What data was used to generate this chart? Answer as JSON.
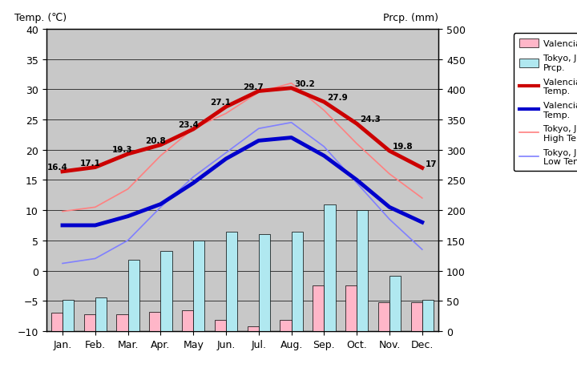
{
  "months": [
    "Jan.",
    "Feb.",
    "Mar.",
    "Apr.",
    "May",
    "Jun.",
    "Jul.",
    "Aug.",
    "Sep.",
    "Oct.",
    "Nov.",
    "Dec."
  ],
  "valencia_high": [
    16.4,
    17.1,
    19.3,
    20.8,
    23.4,
    27.1,
    29.7,
    30.2,
    27.9,
    24.3,
    19.8,
    17.0
  ],
  "valencia_low": [
    7.5,
    7.5,
    9.0,
    11.0,
    14.5,
    18.5,
    21.5,
    22.0,
    19.0,
    15.0,
    10.5,
    8.0
  ],
  "tokyo_high": [
    9.8,
    10.5,
    13.5,
    19.0,
    23.5,
    26.0,
    29.5,
    31.0,
    26.5,
    21.0,
    16.0,
    12.0
  ],
  "tokyo_low": [
    1.2,
    2.0,
    5.0,
    10.5,
    15.5,
    19.5,
    23.5,
    24.5,
    20.5,
    14.5,
    8.5,
    3.5
  ],
  "valencia_prcp_mm": [
    30,
    28,
    28,
    32,
    35,
    18,
    8,
    18,
    75,
    75,
    48,
    48
  ],
  "tokyo_prcp_mm": [
    52,
    56,
    118,
    133,
    150,
    165,
    160,
    165,
    210,
    200,
    92,
    52
  ],
  "temp_ylim": [
    -10,
    40
  ],
  "prcp_ylim": [
    0,
    500
  ],
  "plot_bg_color": "#c8c8c8",
  "valencia_high_color": "#cc0000",
  "valencia_low_color": "#0000cc",
  "tokyo_high_color": "#ff8080",
  "tokyo_low_color": "#8080ff",
  "valencia_prcp_color": "#ffb6c8",
  "tokyo_prcp_color": "#b0e8f0",
  "title_left": "Temp. (℃)",
  "title_right": "Prcp. (mm)",
  "annot_positions": [
    [
      0,
      16.4,
      "16.4",
      -14,
      2
    ],
    [
      1,
      17.1,
      "17.1",
      -14,
      2
    ],
    [
      2,
      19.3,
      "19.3",
      -14,
      2
    ],
    [
      3,
      20.8,
      "20.8",
      -14,
      2
    ],
    [
      4,
      23.4,
      "23.4",
      -14,
      2
    ],
    [
      5,
      27.1,
      "27.1",
      -14,
      2
    ],
    [
      6,
      29.7,
      "29.7",
      -14,
      2
    ],
    [
      7,
      30.2,
      "30.2",
      3,
      2
    ],
    [
      8,
      27.9,
      "27.9",
      3,
      2
    ],
    [
      9,
      24.3,
      "24.3",
      3,
      2
    ],
    [
      10,
      19.8,
      "19.8",
      3,
      2
    ],
    [
      11,
      17.0,
      "17",
      3,
      2
    ]
  ]
}
